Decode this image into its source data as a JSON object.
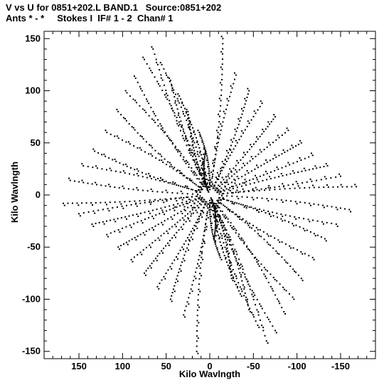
{
  "chart_data": {
    "type": "scatter",
    "title": "V vs U for 0851+202.L BAND.1   Source:0851+202",
    "subtitle": "Ants * - *     Stokes I  IF# 1 - 2  Chan# 1",
    "xlabel": "Kilo Wavlngth",
    "ylabel": "Kilo Wavlngth",
    "xlim": [
      190,
      -190
    ],
    "ylim": [
      -157,
      157
    ],
    "xticks": [
      150,
      100,
      50,
      0,
      -50,
      -100,
      -150
    ],
    "yticks": [
      150,
      100,
      50,
      0,
      -50,
      -100,
      -150
    ],
    "grid": false,
    "point_color": "#000000",
    "uv_tracks": [
      {
        "u0": 160,
        "v0": 14
      },
      {
        "u0": 145,
        "v0": 28
      },
      {
        "u0": 132,
        "v0": 42
      },
      {
        "u0": 118,
        "v0": 60
      },
      {
        "u0": 105,
        "v0": 80
      },
      {
        "u0": 95,
        "v0": 98
      },
      {
        "u0": 85,
        "v0": 112
      },
      {
        "u0": 75,
        "v0": 130
      },
      {
        "u0": 65,
        "v0": 140
      },
      {
        "u0": 55,
        "v0": 125
      },
      {
        "u0": 45,
        "v0": 110
      },
      {
        "u0": 35,
        "v0": 95
      },
      {
        "u0": 25,
        "v0": 80
      },
      {
        "u0": 12,
        "v0": 60
      },
      {
        "u0": 5,
        "v0": 42
      },
      {
        "u0": -15,
        "v0": 150
      },
      {
        "u0": -30,
        "v0": 115
      },
      {
        "u0": -45,
        "v0": 100
      },
      {
        "u0": -60,
        "v0": 88
      },
      {
        "u0": -75,
        "v0": 75
      },
      {
        "u0": -90,
        "v0": 62
      },
      {
        "u0": -105,
        "v0": 50
      },
      {
        "u0": -118,
        "v0": 38
      },
      {
        "u0": -135,
        "v0": 28
      },
      {
        "u0": -150,
        "v0": 18
      },
      {
        "u0": -168,
        "v0": 8
      }
    ],
    "center_blob": [
      {
        "u": 5,
        "v": 20
      },
      {
        "u": -10,
        "v": 15
      },
      {
        "u": -25,
        "v": 22
      },
      {
        "u": 18,
        "v": -12
      },
      {
        "u": 28,
        "v": -15
      },
      {
        "u": -5,
        "v": -8
      },
      {
        "u": 10,
        "v": 5
      },
      {
        "u": -15,
        "v": -3
      }
    ]
  }
}
